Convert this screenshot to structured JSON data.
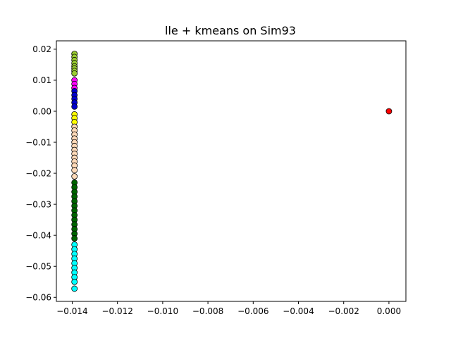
{
  "chart_data": {
    "type": "scatter",
    "title": "lle + kmeans on Sim93",
    "xlabel": "",
    "ylabel": "",
    "xlim": [
      -0.0147,
      0.00075
    ],
    "ylim": [
      -0.0613,
      0.0227
    ],
    "xticks": [
      -0.014,
      -0.012,
      -0.01,
      -0.008,
      -0.006,
      -0.004,
      -0.002,
      0.0
    ],
    "xtick_labels": [
      "−0.014",
      "−0.012",
      "−0.010",
      "−0.008",
      "−0.006",
      "−0.004",
      "−0.002",
      "0.000"
    ],
    "yticks": [
      0.02,
      0.01,
      0.0,
      -0.01,
      -0.02,
      -0.03,
      -0.04,
      -0.05,
      -0.06
    ],
    "ytick_labels": [
      "0.02",
      "0.01",
      "0.00",
      "−0.01",
      "−0.02",
      "−0.03",
      "−0.04",
      "−0.05",
      "−0.06"
    ],
    "grid": false,
    "marker_edge_color": "#000000",
    "series": [
      {
        "color": "#9acd32",
        "points": [
          [
            -0.0139,
            0.0185
          ],
          [
            -0.0139,
            0.0175
          ],
          [
            -0.0139,
            0.0165
          ],
          [
            -0.0139,
            0.0155
          ],
          [
            -0.0139,
            0.0145
          ],
          [
            -0.0139,
            0.0138
          ],
          [
            -0.0139,
            0.013
          ],
          [
            -0.0139,
            0.0122
          ]
        ]
      },
      {
        "color": "#ff00ff",
        "points": [
          [
            -0.0139,
            0.01
          ],
          [
            -0.0139,
            0.0088
          ],
          [
            -0.0139,
            0.0075
          ]
        ]
      },
      {
        "color": "#0000cd",
        "points": [
          [
            -0.0139,
            0.0065
          ],
          [
            -0.0139,
            0.0052
          ],
          [
            -0.0139,
            0.004
          ],
          [
            -0.0139,
            0.0028
          ],
          [
            -0.0139,
            0.0015
          ]
        ]
      },
      {
        "color": "#ffff00",
        "points": [
          [
            -0.0139,
            -0.001
          ],
          [
            -0.0139,
            -0.0022
          ],
          [
            -0.0139,
            -0.0035
          ]
        ]
      },
      {
        "color": "#ffdab9",
        "points": [
          [
            -0.0139,
            -0.005
          ],
          [
            -0.0139,
            -0.0062
          ],
          [
            -0.0139,
            -0.0075
          ],
          [
            -0.0139,
            -0.0088
          ],
          [
            -0.0139,
            -0.01
          ],
          [
            -0.0139,
            -0.0112
          ],
          [
            -0.0139,
            -0.0125
          ],
          [
            -0.0139,
            -0.0137
          ],
          [
            -0.0139,
            -0.015
          ],
          [
            -0.0139,
            -0.0162
          ],
          [
            -0.0139,
            -0.0175
          ],
          [
            -0.0139,
            -0.019
          ],
          [
            -0.0139,
            -0.021
          ]
        ]
      },
      {
        "color": "#006400",
        "points": [
          [
            -0.0139,
            -0.023
          ],
          [
            -0.0139,
            -0.0245
          ],
          [
            -0.0139,
            -0.026
          ],
          [
            -0.0139,
            -0.0275
          ],
          [
            -0.0139,
            -0.029
          ],
          [
            -0.0139,
            -0.0305
          ],
          [
            -0.0139,
            -0.032
          ],
          [
            -0.0139,
            -0.0335
          ],
          [
            -0.0139,
            -0.035
          ],
          [
            -0.0139,
            -0.0365
          ],
          [
            -0.0139,
            -0.038
          ],
          [
            -0.0139,
            -0.0395
          ],
          [
            -0.0139,
            -0.041
          ]
        ]
      },
      {
        "color": "#00ffff",
        "points": [
          [
            -0.0139,
            -0.043
          ],
          [
            -0.0139,
            -0.0445
          ],
          [
            -0.0139,
            -0.046
          ],
          [
            -0.0139,
            -0.0475
          ],
          [
            -0.0139,
            -0.049
          ],
          [
            -0.0139,
            -0.0505
          ],
          [
            -0.0139,
            -0.052
          ],
          [
            -0.0139,
            -0.0535
          ],
          [
            -0.0139,
            -0.055
          ],
          [
            -0.0139,
            -0.0572
          ]
        ]
      },
      {
        "color": "#ff0000",
        "points": [
          [
            0.0,
            0.0
          ]
        ]
      }
    ]
  }
}
